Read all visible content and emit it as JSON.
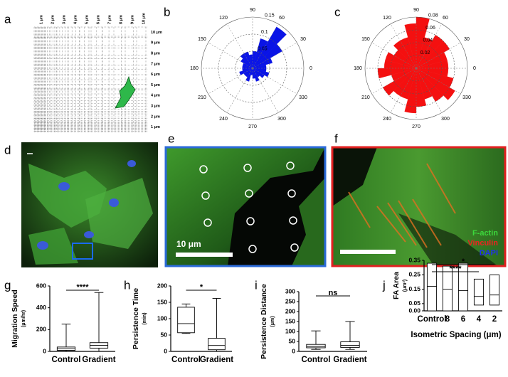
{
  "panel_labels": [
    "a",
    "b",
    "c",
    "d",
    "e",
    "f",
    "g",
    "h",
    "i",
    "j"
  ],
  "grid_panel": {
    "top_labels": [
      "1 μm",
      "2 μm",
      "3 μm",
      "4 μm",
      "5 μm",
      "6 μm",
      "7 μm",
      "8 μm",
      "9 μm",
      "10 μm"
    ],
    "right_labels": [
      "10 μm",
      "9 μm",
      "8 μm",
      "7 μm",
      "6 μm",
      "5 μm",
      "4 μm",
      "3 μm",
      "2 μm",
      "1 μm"
    ]
  },
  "image_labels": {
    "scale_e": "10 μm",
    "stains": [
      "F-actin",
      "Vinculin",
      "DAPI"
    ]
  },
  "chart_data": [
    {
      "type": "polar",
      "color": "#0a14e6",
      "x": [
        0,
        15,
        30,
        45,
        60,
        75,
        90,
        105,
        120,
        135,
        150,
        165,
        180,
        195,
        210,
        225,
        240,
        255,
        270,
        285,
        300,
        315,
        330,
        345
      ],
      "values": [
        0.04,
        0.06,
        0.1,
        0.14,
        0.09,
        0.05,
        0.04,
        0.05,
        0.05,
        0.04,
        0.03,
        0.03,
        0.03,
        0.04,
        0.03,
        0.03,
        0.04,
        0.02,
        0.03,
        0.04,
        0.03,
        0.04,
        0.05,
        0.04
      ],
      "rlim": [
        0,
        0.15
      ],
      "rticks": [
        0.05,
        0.1,
        0.15
      ],
      "angle_ticks": [
        0,
        30,
        60,
        90,
        120,
        150,
        180,
        210,
        240,
        270,
        300,
        330
      ]
    },
    {
      "type": "polar",
      "color": "#f41010",
      "x": [
        0,
        15,
        30,
        45,
        60,
        75,
        90,
        105,
        120,
        135,
        150,
        165,
        180,
        195,
        210,
        225,
        240,
        255,
        270,
        285,
        300,
        315,
        330,
        345
      ],
      "values": [
        0.05,
        0.05,
        0.06,
        0.06,
        0.05,
        0.08,
        0.07,
        0.05,
        0.05,
        0.04,
        0.05,
        0.05,
        0.06,
        0.04,
        0.06,
        0.05,
        0.05,
        0.07,
        0.06,
        0.05,
        0.06,
        0.07,
        0.06,
        0.05
      ],
      "rlim": [
        0,
        0.08
      ],
      "rticks": [
        {
          "value": 0.02,
          "label": "0.02"
        },
        {
          "value": 0.04,
          "label": "0.04"
        },
        {
          "value": 0.06,
          "label": "0.06"
        },
        {
          "value": 0.08,
          "label": "0.08"
        }
      ],
      "angle_ticks": [
        0,
        30,
        60,
        90,
        120,
        150,
        180,
        210,
        240,
        270,
        300,
        330
      ]
    },
    {
      "type": "box",
      "ylabel": "Migration Speed",
      "y_unit": "(μm/hr)",
      "categories": [
        "Control",
        "Gradient"
      ],
      "min": [
        0,
        0
      ],
      "q1": [
        10,
        30
      ],
      "median": [
        25,
        55
      ],
      "q3": [
        40,
        80
      ],
      "max": [
        250,
        540
      ],
      "ylim": [
        0,
        600
      ],
      "yticks": [
        0,
        200,
        400,
        600
      ],
      "significance": [
        {
          "between": [
            "Control",
            "Gradient"
          ],
          "label": "****"
        }
      ]
    },
    {
      "type": "box",
      "ylabel": "Persistence Time",
      "y_unit": "(min)",
      "categories": [
        "Control",
        "Gradient"
      ],
      "min": [
        55,
        0
      ],
      "q1": [
        57,
        5
      ],
      "median": [
        85,
        18
      ],
      "q3": [
        135,
        40
      ],
      "max": [
        145,
        162
      ],
      "ylim": [
        0,
        200
      ],
      "yticks": [
        0,
        50,
        100,
        150,
        200
      ],
      "significance": [
        {
          "between": [
            "Control",
            "Gradient"
          ],
          "label": "*"
        }
      ]
    },
    {
      "type": "box",
      "ylabel": "Persistence Distance",
      "y_unit": "(μm)",
      "categories": [
        "Control",
        "Gradient"
      ],
      "min": [
        10,
        10
      ],
      "q1": [
        18,
        20
      ],
      "median": [
        25,
        30
      ],
      "q3": [
        35,
        48
      ],
      "max": [
        103,
        150
      ],
      "ylim": [
        0,
        300
      ],
      "yticks": [
        0,
        50,
        100,
        150,
        200,
        250,
        300
      ],
      "significance": [
        {
          "between": [
            "Control",
            "Gradient"
          ],
          "label": "ns"
        }
      ]
    },
    {
      "type": "box",
      "ylabel": "FA Area",
      "y_unit": "(μm²)",
      "xlabel": "Isometric Spacing (μm)",
      "categories": [
        "Control",
        "8",
        "6",
        "4",
        "2"
      ],
      "q1": [
        0.0,
        0.0,
        0.0,
        0.04,
        0.04
      ],
      "median": [
        0.17,
        0.15,
        0.14,
        0.1,
        0.11
      ],
      "q3": [
        0.33,
        0.31,
        0.33,
        0.22,
        0.25
      ],
      "ylim": [
        0,
        0.35
      ],
      "yticks": [
        {
          "value": 0,
          "label": "0.00"
        },
        {
          "value": 0.05,
          "label": "0.05"
        },
        {
          "value": 0.15,
          "label": "0.15"
        },
        {
          "value": 0.25,
          "label": "0.25"
        },
        {
          "value": 0.35,
          "label": "0.35"
        }
      ],
      "significance": [
        {
          "between": [
            "Control",
            "2"
          ],
          "label": "*"
        },
        {
          "between": [
            "Control",
            "4"
          ],
          "label": "****"
        }
      ]
    }
  ]
}
